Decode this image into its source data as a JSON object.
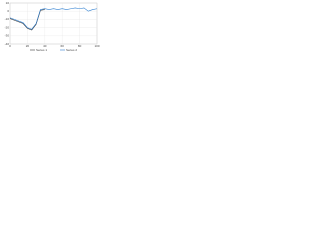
{
  "chart_data": {
    "type": "line",
    "x": [
      0,
      5,
      10,
      15,
      20,
      25,
      30,
      35,
      40,
      45,
      50,
      55,
      60,
      65,
      70,
      75,
      80,
      85,
      90,
      95,
      100
    ],
    "series": [
      {
        "name": "Series 1",
        "color": "#3a3a3a",
        "values": [
          -9,
          -11,
          -13,
          -15,
          -21,
          -23,
          -16,
          1,
          2,
          null,
          null,
          null,
          null,
          null,
          null,
          null,
          null,
          null,
          null,
          null,
          null
        ]
      },
      {
        "name": "Series 2",
        "color": "#2f7fd0",
        "values": [
          -8,
          -10,
          -12,
          -14,
          -20,
          -22,
          -15,
          2,
          3,
          2,
          3,
          2,
          3,
          2,
          3,
          4,
          3,
          4,
          0,
          2,
          3
        ]
      }
    ],
    "xlim": [
      0,
      100
    ],
    "xticks": [
      0,
      20,
      40,
      60,
      80,
      100
    ],
    "ylim": [
      -40,
      10
    ],
    "yticks": [
      -40,
      -30,
      -20,
      -10,
      0,
      10
    ],
    "grid": true,
    "legend": "bottom"
  }
}
